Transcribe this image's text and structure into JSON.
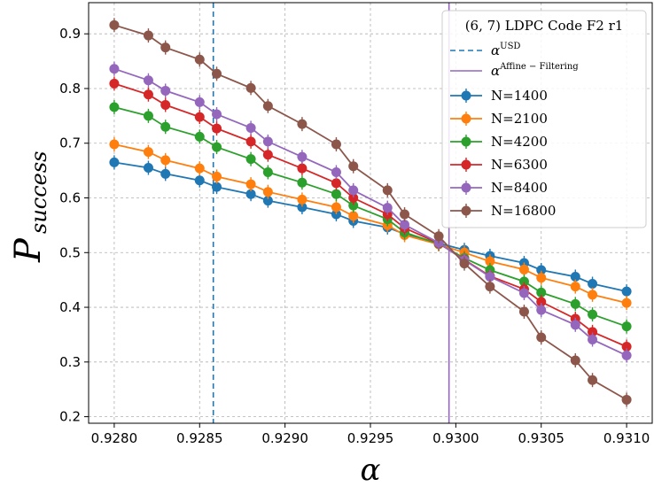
{
  "chart_data": {
    "type": "line",
    "title": "",
    "xlabel": "α",
    "ylabel_main": "P",
    "ylabel_sub": "success",
    "xlim": [
      0.92785,
      0.93115
    ],
    "ylim": [
      0.188,
      0.957
    ],
    "grid": true,
    "grid_style": "dashed",
    "xticks": [
      0.928,
      0.9285,
      0.929,
      0.9295,
      0.93,
      0.9305,
      0.931
    ],
    "xtick_labels": [
      "0.9280",
      "0.9285",
      "0.9290",
      "0.9295",
      "0.9300",
      "0.9305",
      "0.9310"
    ],
    "yticks": [
      0.2,
      0.3,
      0.4,
      0.5,
      0.6,
      0.7,
      0.8,
      0.9
    ],
    "ytick_labels": [
      "0.2",
      "0.3",
      "0.4",
      "0.5",
      "0.6",
      "0.7",
      "0.8",
      "0.9"
    ],
    "legend": {
      "title": "(6, 7) LDPC Code F2 r1",
      "placement": "upper right",
      "vlines": [
        {
          "label_main": "α",
          "label_sup": "USD"
        },
        {
          "label_main": "α",
          "label_sup": "Affine − Filtering"
        }
      ]
    },
    "vlines": [
      {
        "x": 0.92858,
        "color": "#1f77b4",
        "style": "dashed"
      },
      {
        "x": 0.92996,
        "color": "#9467bd",
        "style": "solid"
      }
    ],
    "x": [
      0.928,
      0.9282,
      0.9283,
      0.9285,
      0.9286,
      0.9288,
      0.9289,
      0.9291,
      0.9293,
      0.9294,
      0.9296,
      0.9297,
      0.9299,
      0.93005,
      0.9302,
      0.9304,
      0.9305,
      0.9307,
      0.9308,
      0.931
    ],
    "series": [
      {
        "name": "N=1400",
        "color": "#1f77b4",
        "values": [
          0.665,
          0.655,
          0.644,
          0.632,
          0.62,
          0.607,
          0.595,
          0.583,
          0.57,
          0.558,
          0.546,
          0.534,
          0.517,
          0.505,
          0.494,
          0.481,
          0.468,
          0.456,
          0.443,
          0.429
        ]
      },
      {
        "name": "N=2100",
        "color": "#ff7f0e",
        "values": [
          0.698,
          0.684,
          0.669,
          0.654,
          0.639,
          0.625,
          0.611,
          0.597,
          0.583,
          0.567,
          0.55,
          0.532,
          0.515,
          0.5,
          0.484,
          0.469,
          0.454,
          0.438,
          0.423,
          0.408
        ]
      },
      {
        "name": "N=4200",
        "color": "#2ca02c",
        "values": [
          0.766,
          0.75,
          0.73,
          0.712,
          0.693,
          0.671,
          0.647,
          0.628,
          0.607,
          0.586,
          0.561,
          0.537,
          0.516,
          0.49,
          0.468,
          0.447,
          0.427,
          0.406,
          0.387,
          0.365
        ]
      },
      {
        "name": "N=6300",
        "color": "#d62728",
        "values": [
          0.809,
          0.789,
          0.77,
          0.748,
          0.727,
          0.703,
          0.679,
          0.654,
          0.627,
          0.6,
          0.57,
          0.545,
          0.517,
          0.487,
          0.457,
          0.433,
          0.41,
          0.379,
          0.355,
          0.328
        ]
      },
      {
        "name": "N=8400",
        "color": "#9467bd",
        "values": [
          0.836,
          0.815,
          0.796,
          0.775,
          0.753,
          0.728,
          0.703,
          0.675,
          0.647,
          0.614,
          0.582,
          0.551,
          0.518,
          0.486,
          0.456,
          0.426,
          0.395,
          0.368,
          0.341,
          0.312
        ]
      },
      {
        "name": "N=16800",
        "color": "#8c564b",
        "values": [
          0.916,
          0.897,
          0.875,
          0.853,
          0.827,
          0.801,
          0.768,
          0.735,
          0.698,
          0.658,
          0.614,
          0.57,
          0.53,
          0.48,
          0.438,
          0.392,
          0.345,
          0.303,
          0.267,
          0.231
        ]
      }
    ]
  }
}
